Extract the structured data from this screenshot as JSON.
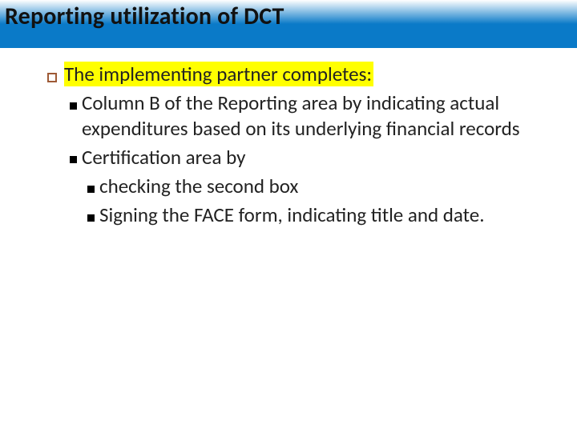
{
  "slide": {
    "title": "Reporting utilization of DCT",
    "title_fontsize": 30,
    "title_color": "#111111",
    "band_gradient_from": "#ffffff",
    "band_gradient_to": "#0a7ac8",
    "body_fontsize": 25,
    "body_color": "#222222",
    "highlight_color": "#ffff00",
    "bullet_outline_color": "#9e5a36",
    "bullet_solid_color": "#000000"
  },
  "bullets": {
    "l1_1": "The implementing partner completes:",
    "l2_1": "Column B of the Reporting area by indicating actual expenditures based on its underlying financial records",
    "l2_2": "Certification area by",
    "l3_1": "checking the second box",
    "l3_2": "Signing the FACE form, indicating title and date."
  }
}
